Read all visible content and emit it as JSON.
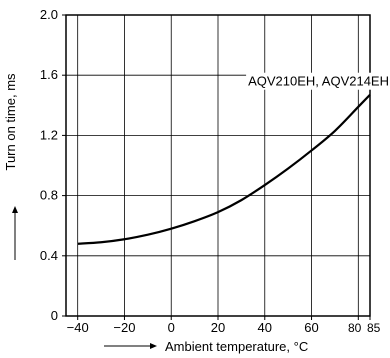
{
  "chart_data": {
    "type": "line",
    "title": "",
    "xlabel": "Ambient temperature, °C",
    "ylabel": "Turn on time, ms",
    "xlim": [
      -45,
      85
    ],
    "ylim": [
      0,
      2.0
    ],
    "x_ticks": [
      -40,
      -20,
      0,
      20,
      40,
      60,
      80,
      85
    ],
    "x_tick_labels": [
      "−40",
      "−20",
      "0",
      "20",
      "40",
      "60",
      "80",
      "85"
    ],
    "y_ticks": [
      0,
      0.4,
      0.8,
      1.2,
      1.6,
      2.0
    ],
    "y_tick_labels": [
      "0",
      "0.4",
      "0.8",
      "1.2",
      "1.6",
      "2.0"
    ],
    "grid": true,
    "series": [
      {
        "name": "AQV210EH, AQV214EH",
        "color": "#000000",
        "x": [
          -40,
          -30,
          -20,
          -10,
          0,
          10,
          20,
          30,
          40,
          50,
          60,
          70,
          80,
          85
        ],
        "y": [
          0.48,
          0.49,
          0.51,
          0.54,
          0.58,
          0.63,
          0.69,
          0.77,
          0.87,
          0.98,
          1.1,
          1.23,
          1.39,
          1.47
        ]
      }
    ],
    "annotations": [
      {
        "text": "AQV210EH, AQV214EH",
        "x": 63,
        "y": 1.55
      }
    ]
  }
}
